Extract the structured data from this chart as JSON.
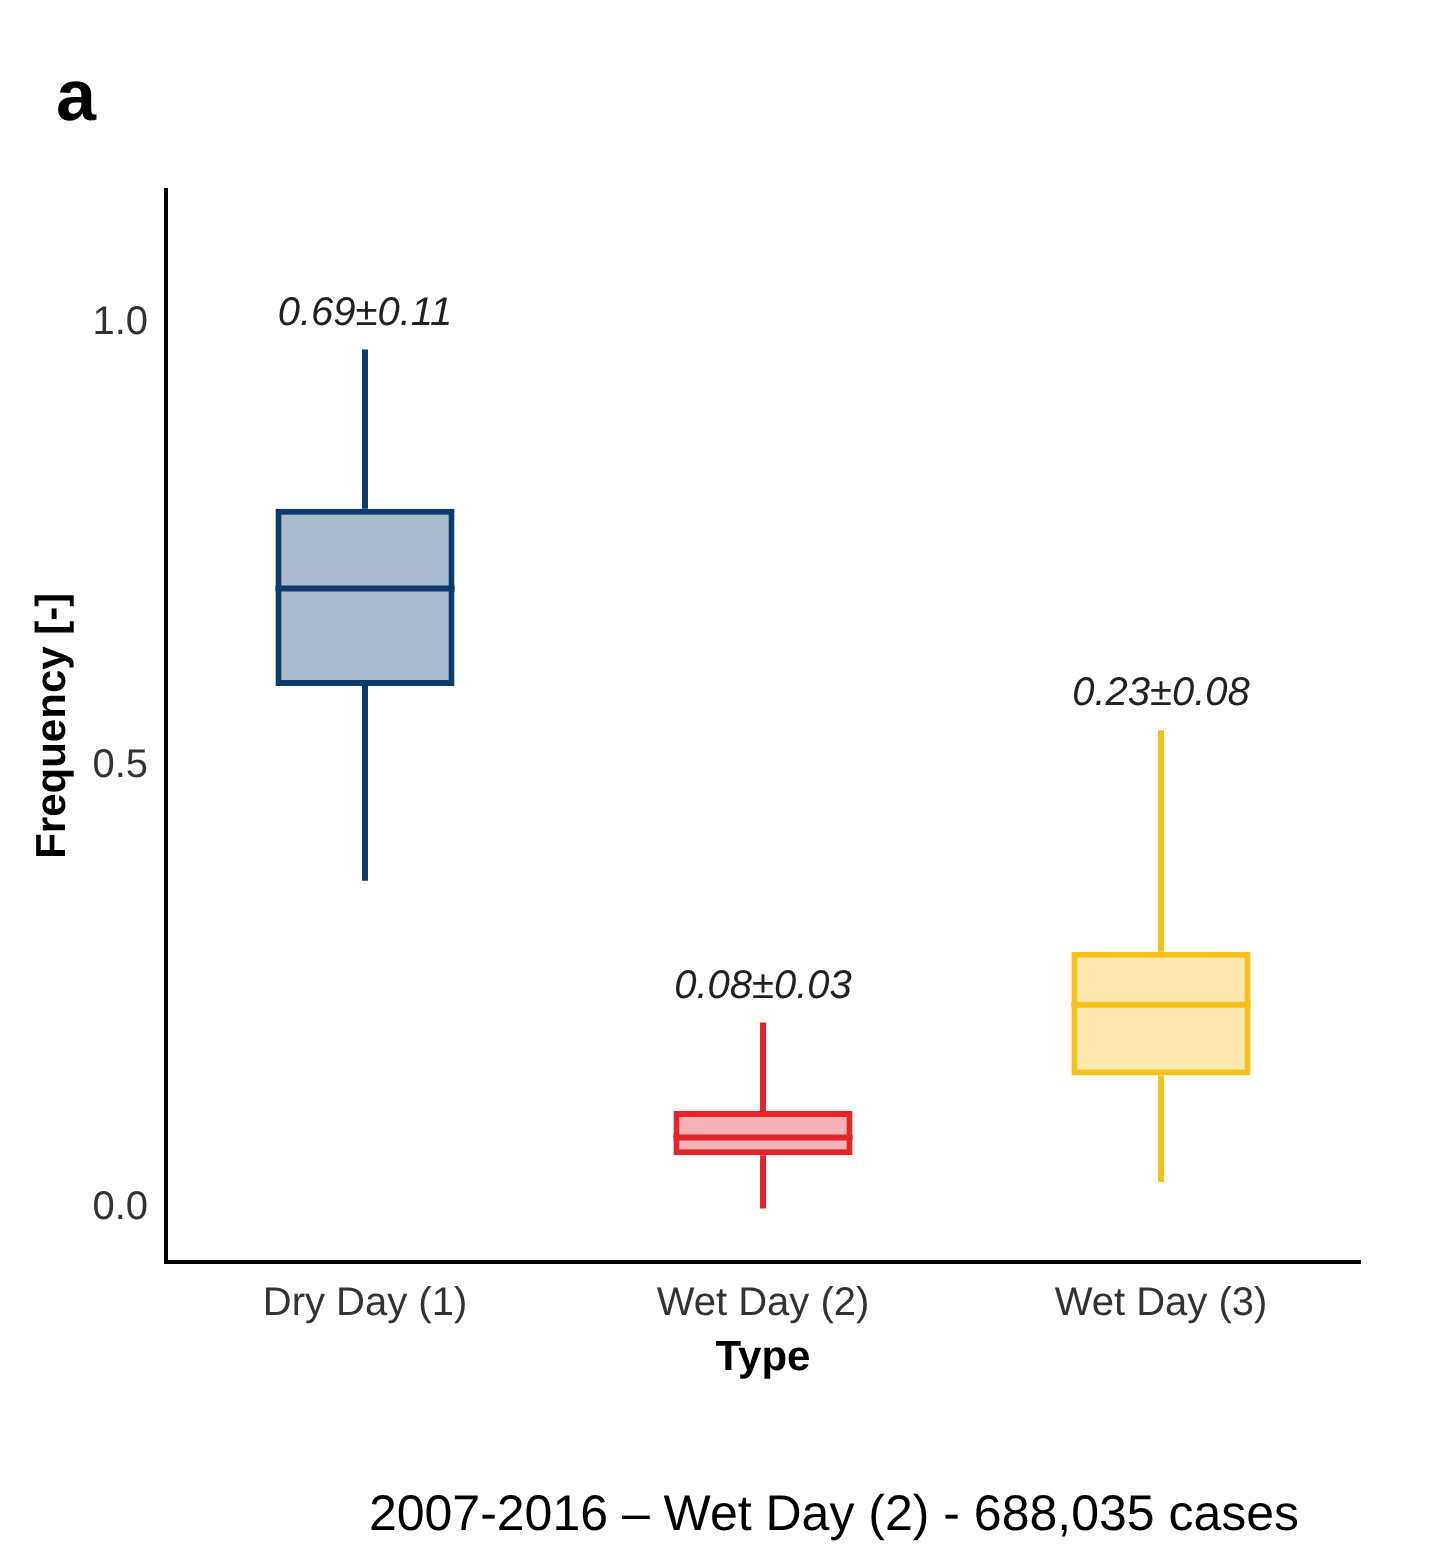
{
  "chart_data": {
    "type": "box",
    "categories": [
      "Dry Day (1)",
      "Wet Day (2)",
      "Wet Day (3)"
    ],
    "colors": [
      "#0d3b6e",
      "#e3242b",
      "#f8c01c"
    ],
    "boxes": [
      {
        "low": 0.37,
        "q1": 0.59,
        "median": 0.7,
        "q3": 0.79,
        "high": 0.97
      },
      {
        "low": 0.0,
        "q1": 0.06,
        "median": 0.08,
        "q3": 0.11,
        "high": 0.21
      },
      {
        "low": 0.03,
        "q1": 0.15,
        "median": 0.23,
        "q3": 0.29,
        "high": 0.54
      }
    ],
    "xlabel": "Type",
    "ylabel": "Frequency [-]",
    "ylim": [
      -0.06,
      1.15
    ],
    "yticks": [
      {
        "value": 0,
        "label": "0.0"
      },
      {
        "value": 0.5,
        "label": "0.5"
      },
      {
        "value": 1,
        "label": "1.0"
      }
    ],
    "annotations": [
      "a",
      "0.69±0.11",
      "0.08±0.03",
      "0.23±0.08",
      "2007-2016 – Wet Day (2) - 688,035 cases"
    ],
    "grid": false,
    "legend": false
  }
}
